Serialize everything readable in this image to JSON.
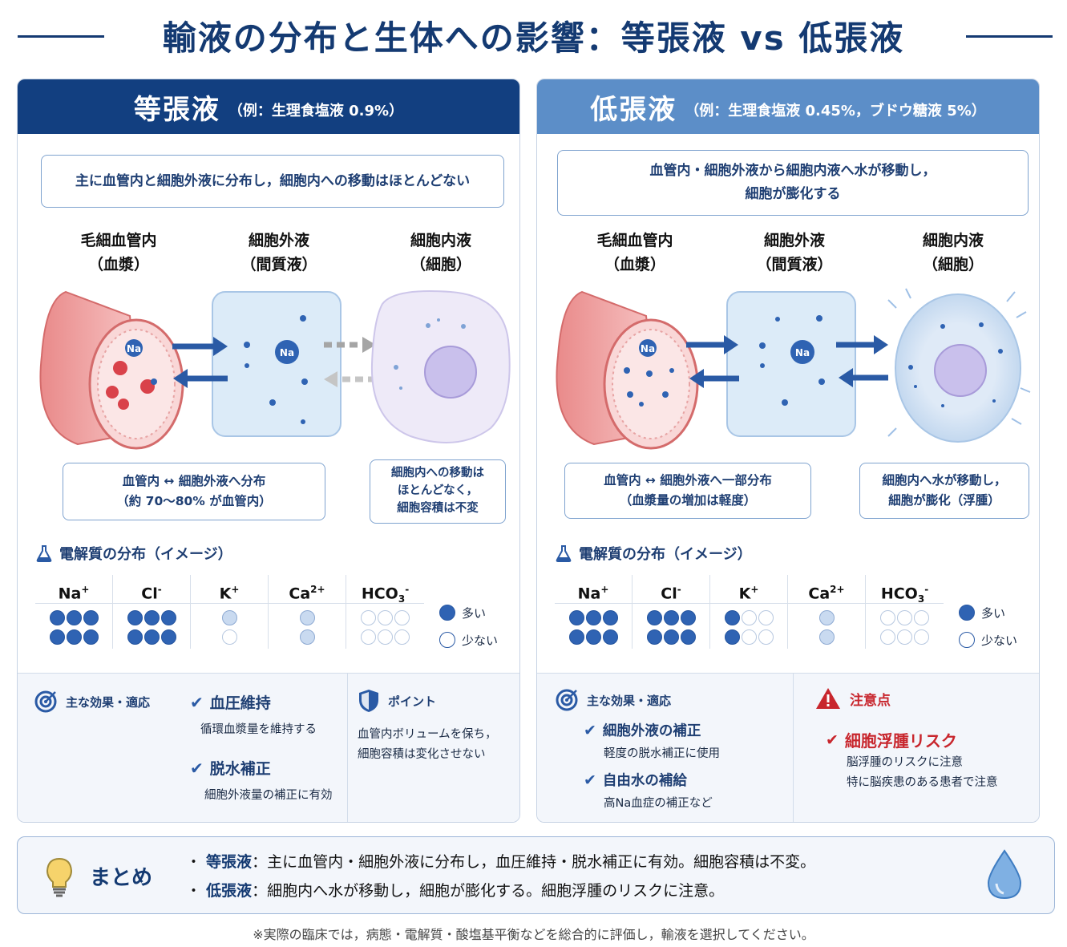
{
  "title": "輸液の分布と生体への影響：等張液 vs 低張液",
  "common": {
    "compartments": [
      {
        "line1": "毛細血管内",
        "line2": "（血漿）"
      },
      {
        "line1": "細胞外液",
        "line2": "（間質液）"
      },
      {
        "line1": "細胞内液",
        "line2": "（細胞）"
      }
    ],
    "na_label": "Na",
    "electrolyte_title": "電解質の分布（イメージ）",
    "electrolytes": [
      {
        "base": "Na",
        "sup": "+",
        "sub": ""
      },
      {
        "base": "Cl",
        "sup": "-",
        "sub": ""
      },
      {
        "base": "K",
        "sup": "+",
        "sub": ""
      },
      {
        "base": "Ca",
        "sup": "2+",
        "sub": ""
      },
      {
        "base": "HCO",
        "sup": "-",
        "sub": "3"
      }
    ],
    "legend_high": "多い",
    "legend_low": "少ない",
    "effects_label": "主な効果・適応"
  },
  "isotonic": {
    "name": "等張液",
    "example": "（例：生理食塩液 0.9%）",
    "summary": "主に血管内と細胞外液に分布し，細胞内への移動はほとんどない",
    "note_left": {
      "line1": "血管内 ↔ 細胞外液へ分布",
      "line2": "（約 70〜80% が血管内）"
    },
    "note_right": {
      "line1": "細胞内への移動は",
      "line2": "ほとんどなく，",
      "line3": "細胞容積は不変"
    },
    "dots": [
      [
        [
          "full",
          "full",
          "full"
        ],
        [
          "full",
          "full",
          "full"
        ]
      ],
      [
        [
          "full",
          "full",
          "full"
        ],
        [
          "full",
          "full",
          "full"
        ]
      ],
      [
        [
          "light"
        ],
        [
          "empty"
        ]
      ],
      [
        [
          "light"
        ],
        [
          "light"
        ]
      ],
      [
        [
          "empty",
          "empty",
          "empty"
        ],
        [
          "empty",
          "empty",
          "empty"
        ]
      ]
    ],
    "effects": [
      {
        "title": "血圧維持",
        "desc": "循環血漿量を維持する"
      },
      {
        "title": "脱水補正",
        "desc": "細胞外液量の補正に有効"
      }
    ],
    "point_label": "ポイント",
    "point_desc1": "血管内ボリュームを保ち，",
    "point_desc2": "細胞容積は変化させない"
  },
  "hypotonic": {
    "name": "低張液",
    "example": "（例：生理食塩液 0.45%，ブドウ糖液 5%）",
    "summary_line1": "血管内・細胞外液から細胞内液へ水が移動し，",
    "summary_line2": "細胞が膨化する",
    "note_left": {
      "line1": "血管内 ↔ 細胞外液へ一部分布",
      "line2": "（血漿量の増加は軽度）"
    },
    "note_right": {
      "line1": "細胞内へ水が移動し，",
      "line2": "細胞が膨化（浮腫）"
    },
    "dots": [
      [
        [
          "full",
          "full",
          "full"
        ],
        [
          "full",
          "full",
          "full"
        ]
      ],
      [
        [
          "full",
          "full",
          "full"
        ],
        [
          "full",
          "full",
          "full"
        ]
      ],
      [
        [
          "full",
          "empty",
          "empty"
        ],
        [
          "full",
          "empty",
          "empty"
        ]
      ],
      [
        [
          "light"
        ],
        [
          "light"
        ]
      ],
      [
        [
          "empty",
          "empty",
          "empty"
        ],
        [
          "empty",
          "empty",
          "empty"
        ]
      ]
    ],
    "effects": [
      {
        "title": "細胞外液の補正",
        "desc": "軽度の脱水補正に使用"
      },
      {
        "title": "自由水の補給",
        "desc": "高Na血症の補正など"
      }
    ],
    "warning_label": "注意点",
    "warning_title": "細胞浮腫リスク",
    "warning_desc1": "脳浮腫のリスクに注意",
    "warning_desc2": "特に脳疾患のある患者で注意"
  },
  "summary": {
    "title": "まとめ",
    "line1_term": "等張液",
    "line1_text": "：主に血管内・細胞外液に分布し，血圧維持・脱水補正に有効。細胞容積は不変。",
    "line2_term": "低張液",
    "line2_text": "：細胞内へ水が移動し，細胞が膨化する。細胞浮腫のリスクに注意。"
  },
  "footnote": "※実際の臨床では，病態・電解質・酸塩基平衡などを総合的に評価し，輸液を選択してください。",
  "colors": {
    "navy": "#143a72",
    "header_light": "#5c8ec8",
    "warning": "#c8262d"
  }
}
